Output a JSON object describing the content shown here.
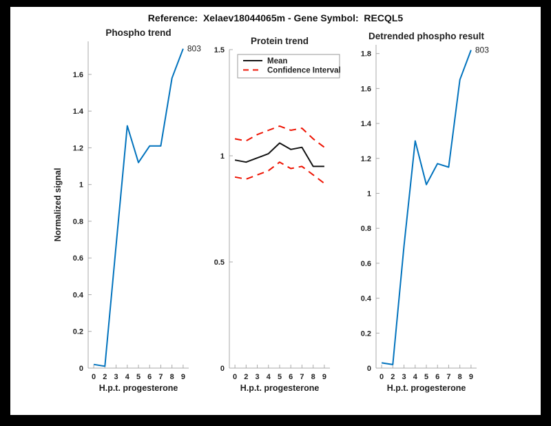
{
  "page": {
    "background": "#000000",
    "canvas": "#ffffff"
  },
  "figure_title": "Reference:  Xelaev18044065m - Gene Symbol:  RECQL5",
  "colors": {
    "axis": "#a8a8a8",
    "text": "#1f1f1f",
    "blue": "#0072BD",
    "red": "#ee1100",
    "black_line": "#111111",
    "legend_border": "#9a9a9a"
  },
  "chart_data": [
    {
      "type": "line",
      "title": "Phospho trend",
      "xlabel": "H.p.t. progesterone",
      "ylabel": "Normalized signal",
      "x": [
        0,
        2,
        3,
        4,
        5,
        6,
        7,
        8,
        9
      ],
      "x_tick_labels": [
        "0",
        "2",
        "3",
        "4",
        "5",
        "6",
        "7",
        "8",
        "9"
      ],
      "y_ticks": [
        0,
        0.2,
        0.4,
        0.6,
        0.8,
        1,
        1.2,
        1.4,
        1.6
      ],
      "y_tick_labels": [
        "0",
        "0.2",
        "0.4",
        "0.6",
        "0.8",
        "1",
        "1.2",
        "1.4",
        "1.6"
      ],
      "ylim": [
        0,
        1.78
      ],
      "grid": false,
      "legend": null,
      "series": [
        {
          "name": "phospho-signal",
          "color_key": "blue",
          "style": "solid",
          "values": [
            0.02,
            0.01,
            0.67,
            1.32,
            1.12,
            1.21,
            1.21,
            1.58,
            1.74
          ]
        }
      ],
      "annotation": {
        "text": "803"
      }
    },
    {
      "type": "line",
      "title": "Protein trend",
      "xlabel": "H.p.t. progesterone",
      "ylabel": "",
      "x": [
        0,
        2,
        3,
        4,
        5,
        6,
        7,
        8,
        9
      ],
      "x_tick_labels": [
        "0",
        "2",
        "3",
        "4",
        "5",
        "6",
        "7",
        "8",
        "9"
      ],
      "y_ticks": [
        0,
        0.5,
        1,
        1.5
      ],
      "y_tick_labels": [
        "0",
        "0.5",
        "1",
        "1.5"
      ],
      "ylim": [
        0,
        1.5
      ],
      "grid": false,
      "legend": {
        "position": "north",
        "entries": [
          {
            "label": "Mean",
            "color_key": "black_line",
            "style": "solid"
          },
          {
            "label": "Confidence Interval",
            "color_key": "red",
            "style": "dashed"
          }
        ]
      },
      "series": [
        {
          "name": "mean",
          "color_key": "black_line",
          "style": "solid",
          "values": [
            0.98,
            0.97,
            0.99,
            1.01,
            1.06,
            1.03,
            1.04,
            0.95,
            0.95
          ]
        },
        {
          "name": "ci-upper",
          "color_key": "red",
          "style": "dashed",
          "values": [
            1.08,
            1.07,
            1.1,
            1.12,
            1.14,
            1.12,
            1.13,
            1.08,
            1.04
          ]
        },
        {
          "name": "ci-lower",
          "color_key": "red",
          "style": "dashed",
          "values": [
            0.9,
            0.89,
            0.91,
            0.93,
            0.97,
            0.94,
            0.95,
            0.91,
            0.87
          ]
        }
      ],
      "annotation": null
    },
    {
      "type": "line",
      "title": "Detrended phospho result",
      "xlabel": "H.p.t. progesterone",
      "ylabel": "",
      "x": [
        0,
        2,
        3,
        4,
        5,
        6,
        7,
        8,
        9
      ],
      "x_tick_labels": [
        "0",
        "2",
        "3",
        "4",
        "5",
        "6",
        "7",
        "8",
        "9"
      ],
      "y_ticks": [
        0,
        0.2,
        0.4,
        0.6,
        0.8,
        1,
        1.2,
        1.4,
        1.6,
        1.8
      ],
      "y_tick_labels": [
        "0",
        "0.2",
        "0.4",
        "0.6",
        "0.8",
        "1",
        "1.2",
        "1.4",
        "1.6",
        "1.8"
      ],
      "ylim": [
        0,
        1.85
      ],
      "grid": false,
      "legend": null,
      "series": [
        {
          "name": "detrended-phospho",
          "color_key": "blue",
          "style": "solid",
          "values": [
            0.03,
            0.02,
            0.7,
            1.3,
            1.05,
            1.17,
            1.15,
            1.65,
            1.82
          ]
        }
      ],
      "annotation": {
        "text": "803"
      }
    }
  ]
}
